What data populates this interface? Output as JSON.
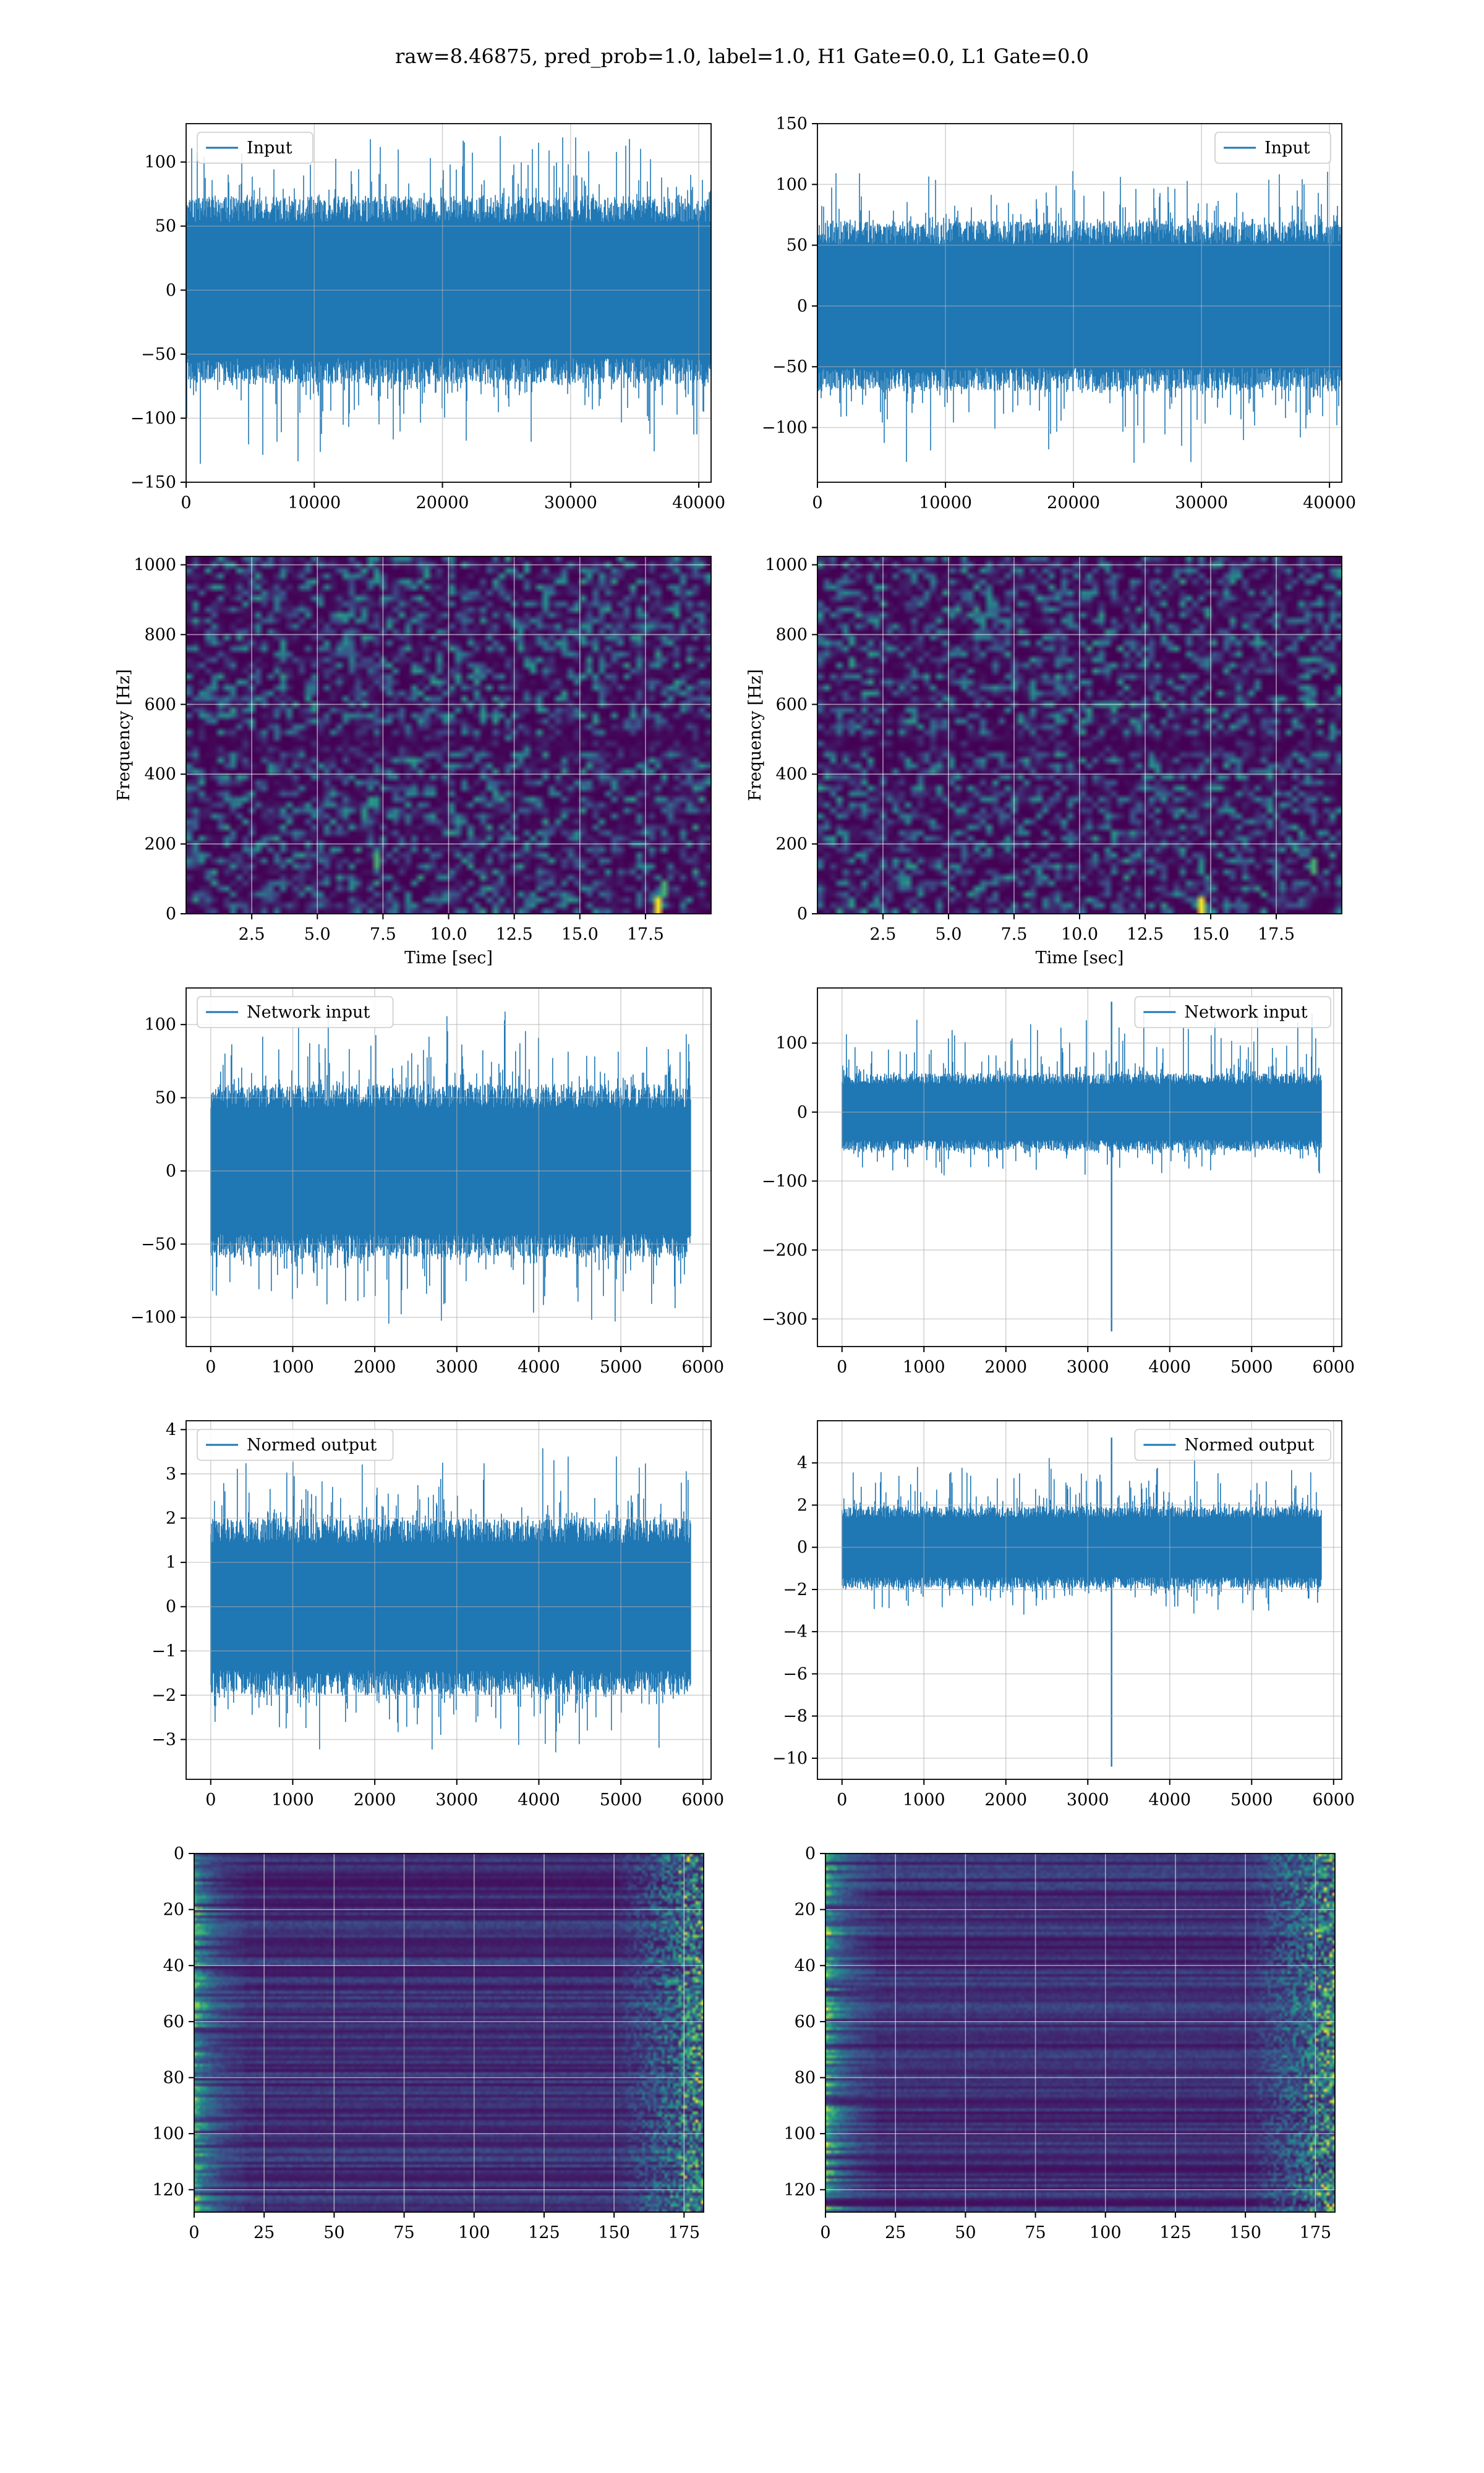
{
  "figure": {
    "suptitle": "raw=8.46875, pred_prob=1.0, label=1.0, H1 Gate=0.0, L1 Gate=0.0"
  },
  "colors": {
    "signal": "#1f77b4",
    "viridis_low": "#440154",
    "viridis_mid": "#21918c",
    "viridis_high": "#fde725",
    "grid": "#b0b0b0"
  },
  "chart_data": [
    {
      "id": "input_h1",
      "type": "line",
      "legend": "Input",
      "legend_loc": "upper-left",
      "xlim": [
        0,
        40960
      ],
      "ylim": [
        -150,
        130
      ],
      "xticks": [
        0,
        10000,
        20000,
        30000,
        40000
      ],
      "xtick_labels": [
        "0",
        "10000",
        "20000",
        "30000",
        "40000"
      ],
      "yticks": [
        -150,
        -100,
        -50,
        0,
        50,
        100
      ],
      "ytick_labels": [
        "−150",
        "−100",
        "−50",
        "0",
        "50",
        "100"
      ],
      "signal": {
        "kind": "noise",
        "n": 40960,
        "body": 68,
        "peak_max": 130,
        "peak_min": -142,
        "spike": null,
        "grid": true
      }
    },
    {
      "id": "input_l1",
      "type": "line",
      "legend": "Input",
      "legend_loc": "upper-right",
      "xlim": [
        0,
        40960
      ],
      "ylim": [
        -145,
        150
      ],
      "xticks": [
        0,
        10000,
        20000,
        30000,
        40000
      ],
      "xtick_labels": [
        "0",
        "10000",
        "20000",
        "30000",
        "40000"
      ],
      "yticks": [
        -100,
        -50,
        0,
        50,
        100,
        150
      ],
      "ytick_labels": [
        "−100",
        "−50",
        "0",
        "50",
        "100",
        "150"
      ],
      "signal": {
        "kind": "noise",
        "n": 40960,
        "body": 65,
        "peak_max": 124,
        "peak_min": -132,
        "spike": null,
        "grid": true
      }
    },
    {
      "id": "spec_h1",
      "type": "heatmap",
      "variant": "spectrogram",
      "xlim": [
        0,
        20
      ],
      "ylim": [
        0,
        1024
      ],
      "xticks": [
        2.5,
        5.0,
        7.5,
        10.0,
        12.5,
        15.0,
        17.5
      ],
      "xtick_labels": [
        "2.5",
        "5.0",
        "7.5",
        "10.0",
        "12.5",
        "15.0",
        "17.5"
      ],
      "yticks": [
        0,
        200,
        400,
        600,
        800,
        1000
      ],
      "ytick_labels": [
        "0",
        "200",
        "400",
        "600",
        "800",
        "1000"
      ],
      "xlabel": "Time [sec]",
      "ylabel": "Frequency [Hz]",
      "hot_spots": [
        [
          17.8,
          35
        ],
        [
          18.0,
          80
        ],
        [
          7.2,
          160
        ]
      ]
    },
    {
      "id": "spec_l1",
      "type": "heatmap",
      "variant": "spectrogram",
      "xlim": [
        0,
        20
      ],
      "ylim": [
        0,
        1024
      ],
      "xticks": [
        2.5,
        5.0,
        7.5,
        10.0,
        12.5,
        15.0,
        17.5
      ],
      "xtick_labels": [
        "2.5",
        "5.0",
        "7.5",
        "10.0",
        "12.5",
        "15.0",
        "17.5"
      ],
      "yticks": [
        0,
        200,
        400,
        600,
        800,
        1000
      ],
      "ytick_labels": [
        "0",
        "200",
        "400",
        "600",
        "800",
        "1000"
      ],
      "xlabel": "Time [sec]",
      "ylabel": "Frequency [Hz]",
      "hot_spots": [
        [
          14.6,
          35
        ],
        [
          18.8,
          150
        ]
      ]
    },
    {
      "id": "net_h1",
      "type": "line",
      "legend": "Network input",
      "legend_loc": "upper-left",
      "xlim": [
        -300,
        6100
      ],
      "ylim": [
        -120,
        125
      ],
      "xticks": [
        0,
        1000,
        2000,
        3000,
        4000,
        5000,
        6000
      ],
      "xtick_labels": [
        "0",
        "1000",
        "2000",
        "3000",
        "4000",
        "5000",
        "6000"
      ],
      "yticks": [
        -100,
        -50,
        0,
        50,
        100
      ],
      "ytick_labels": [
        "−100",
        "−50",
        "0",
        "50",
        "100"
      ],
      "signal": {
        "kind": "noise",
        "n": 5850,
        "body": 55,
        "peak_max": 118,
        "peak_min": -108,
        "spike": null,
        "grid": true
      }
    },
    {
      "id": "net_l1",
      "type": "line",
      "legend": "Network input",
      "legend_loc": "upper-right",
      "xlim": [
        -300,
        6100
      ],
      "ylim": [
        -340,
        180
      ],
      "xticks": [
        0,
        1000,
        2000,
        3000,
        4000,
        5000,
        6000
      ],
      "xtick_labels": [
        "0",
        "1000",
        "2000",
        "3000",
        "4000",
        "5000",
        "6000"
      ],
      "yticks": [
        -300,
        -200,
        -100,
        0,
        100
      ],
      "ytick_labels": [
        "−300",
        "−200",
        "−100",
        "0",
        "100"
      ],
      "signal": {
        "kind": "noise",
        "n": 5850,
        "body": 52,
        "peak_max": 160,
        "peak_min": -95,
        "spike": {
          "x": 3290,
          "min": -318,
          "max": 160
        },
        "grid": true
      }
    },
    {
      "id": "norm_h1",
      "type": "line",
      "legend": "Normed output",
      "legend_loc": "upper-left",
      "xlim": [
        -300,
        6100
      ],
      "ylim": [
        -3.9,
        4.2
      ],
      "xticks": [
        0,
        1000,
        2000,
        3000,
        4000,
        5000,
        6000
      ],
      "xtick_labels": [
        "0",
        "1000",
        "2000",
        "3000",
        "4000",
        "5000",
        "6000"
      ],
      "yticks": [
        -3,
        -2,
        -1,
        0,
        1,
        2,
        3,
        4
      ],
      "ytick_labels": [
        "−3",
        "−2",
        "−1",
        "0",
        "1",
        "2",
        "3",
        "4"
      ],
      "signal": {
        "kind": "noise",
        "n": 5850,
        "body": 1.85,
        "peak_max": 3.9,
        "peak_min": -3.5,
        "spike": null,
        "grid": true
      }
    },
    {
      "id": "norm_l1",
      "type": "line",
      "legend": "Normed output",
      "legend_loc": "upper-right",
      "xlim": [
        -300,
        6100
      ],
      "ylim": [
        -11.0,
        6.0
      ],
      "xticks": [
        0,
        1000,
        2000,
        3000,
        4000,
        5000,
        6000
      ],
      "xtick_labels": [
        "0",
        "1000",
        "2000",
        "3000",
        "4000",
        "5000",
        "6000"
      ],
      "yticks": [
        -10,
        -8,
        -6,
        -4,
        -2,
        0,
        2,
        4
      ],
      "ytick_labels": [
        "−10",
        "−8",
        "−6",
        "−4",
        "−2",
        "0",
        "2",
        "4"
      ],
      "signal": {
        "kind": "noise",
        "n": 5850,
        "body": 1.8,
        "peak_max": 5.2,
        "peak_min": -3.4,
        "spike": {
          "x": 3290,
          "min": -10.4,
          "max": 5.2
        },
        "grid": true
      }
    },
    {
      "id": "feat_h1",
      "type": "heatmap",
      "variant": "features",
      "xlim": [
        0,
        182
      ],
      "ylim": [
        128,
        0
      ],
      "inverted_y": true,
      "xticks": [
        0,
        25,
        50,
        75,
        100,
        125,
        150,
        175
      ],
      "xtick_labels": [
        "0",
        "25",
        "50",
        "75",
        "100",
        "125",
        "150",
        "175"
      ],
      "yticks": [
        0,
        20,
        40,
        60,
        80,
        100,
        120
      ],
      "ytick_labels": [
        "0",
        "20",
        "40",
        "60",
        "80",
        "100",
        "120"
      ]
    },
    {
      "id": "feat_l1",
      "type": "heatmap",
      "variant": "features",
      "xlim": [
        0,
        182
      ],
      "ylim": [
        128,
        0
      ],
      "inverted_y": true,
      "xticks": [
        0,
        25,
        50,
        75,
        100,
        125,
        150,
        175
      ],
      "xtick_labels": [
        "0",
        "25",
        "50",
        "75",
        "100",
        "125",
        "150",
        "175"
      ],
      "yticks": [
        0,
        20,
        40,
        60,
        80,
        100,
        120
      ],
      "ytick_labels": [
        "0",
        "20",
        "40",
        "60",
        "80",
        "100",
        "120"
      ]
    }
  ]
}
